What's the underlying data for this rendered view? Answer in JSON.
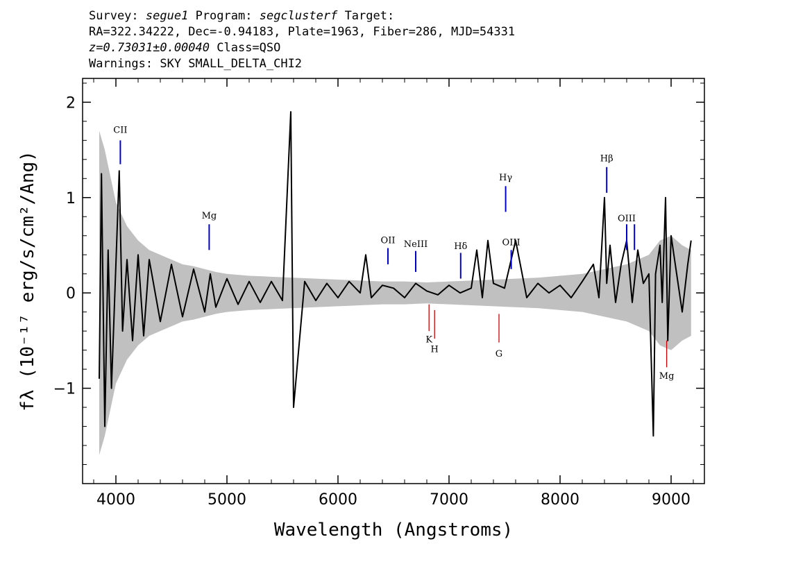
{
  "header": {
    "survey_label": "Survey:",
    "survey": "segue1",
    "program_label": "Program:",
    "program": "segclusterf",
    "target_label": "Target:",
    "line2": "RA=322.34222, Dec=-0.94183, Plate=1963, Fiber=286, MJD=54331",
    "redshift": "z=0.73031±0.00040",
    "class_text": "Class=QSO",
    "warnings": "Warnings: SKY SMALL_DELTA_CHI2"
  },
  "chart_data": {
    "type": "line",
    "xlabel": "Wavelength (Angstroms)",
    "ylabel": "fλ (10⁻¹⁷ erg/s/cm²/Ang)",
    "xlim": [
      3700,
      9300
    ],
    "ylim": [
      -2.0,
      2.25
    ],
    "xticks": [
      4000,
      5000,
      6000,
      7000,
      8000,
      9000
    ],
    "yticks": [
      -1,
      0,
      1,
      2
    ],
    "xtick_labels": [
      "4000",
      "5000",
      "6000",
      "7000",
      "8000",
      "9000"
    ],
    "ytick_labels": [
      "−1",
      "0",
      "1",
      "2"
    ],
    "colors": {
      "flux": "#000000",
      "error": "#c0c0c0",
      "emission": "#0000cc",
      "absorption": "#cc0000"
    },
    "series": [
      {
        "role": "flux",
        "x": [
          3850,
          3870,
          3900,
          3930,
          3960,
          4000,
          4030,
          4060,
          4100,
          4150,
          4200,
          4250,
          4300,
          4400,
          4500,
          4600,
          4700,
          4800,
          4850,
          4900,
          5000,
          5100,
          5200,
          5300,
          5400,
          5500,
          5575,
          5600,
          5700,
          5800,
          5900,
          6000,
          6100,
          6200,
          6250,
          6300,
          6400,
          6500,
          6600,
          6700,
          6800,
          6900,
          7000,
          7100,
          7200,
          7250,
          7300,
          7350,
          7400,
          7500,
          7600,
          7700,
          7800,
          7900,
          8000,
          8100,
          8200,
          8300,
          8350,
          8400,
          8420,
          8450,
          8500,
          8550,
          8600,
          8650,
          8700,
          8750,
          8800,
          8840,
          8860,
          8900,
          8920,
          8950,
          8970,
          9000,
          9050,
          9100,
          9150,
          9180
        ],
        "y": [
          -0.9,
          1.25,
          -1.4,
          0.45,
          -1.0,
          0.3,
          1.28,
          -0.4,
          0.35,
          -0.5,
          0.4,
          -0.45,
          0.35,
          -0.3,
          0.3,
          -0.25,
          0.25,
          -0.2,
          0.2,
          -0.15,
          0.15,
          -0.12,
          0.12,
          -0.1,
          0.12,
          -0.08,
          1.9,
          -1.2,
          0.12,
          -0.08,
          0.1,
          -0.05,
          0.12,
          0.0,
          0.4,
          -0.05,
          0.08,
          0.05,
          -0.05,
          0.1,
          0.02,
          -0.02,
          0.08,
          0.0,
          0.05,
          0.45,
          -0.05,
          0.55,
          0.1,
          0.05,
          0.55,
          -0.05,
          0.1,
          0.0,
          0.08,
          -0.05,
          0.12,
          0.3,
          -0.05,
          1.0,
          0.1,
          0.5,
          -0.1,
          0.3,
          0.55,
          -0.1,
          0.45,
          0.1,
          0.2,
          -1.5,
          0.2,
          0.5,
          -0.1,
          1.0,
          -0.5,
          0.6,
          0.2,
          -0.2,
          0.3,
          0.55
        ]
      },
      {
        "role": "error",
        "x": [
          3850,
          3900,
          4000,
          4100,
          4200,
          4300,
          4400,
          4500,
          4600,
          4700,
          4800,
          4900,
          5000,
          5200,
          5400,
          5600,
          5800,
          6000,
          6200,
          6400,
          6600,
          6800,
          7000,
          7200,
          7400,
          7600,
          7800,
          8000,
          8200,
          8400,
          8600,
          8800,
          8900,
          9000,
          9100,
          9180
        ],
        "y": [
          1.7,
          1.5,
          0.95,
          0.7,
          0.55,
          0.45,
          0.4,
          0.35,
          0.3,
          0.28,
          0.25,
          0.22,
          0.2,
          0.18,
          0.17,
          0.16,
          0.15,
          0.14,
          0.13,
          0.12,
          0.12,
          0.11,
          0.12,
          0.13,
          0.14,
          0.15,
          0.16,
          0.18,
          0.2,
          0.25,
          0.3,
          0.4,
          0.55,
          0.6,
          0.5,
          0.45
        ]
      }
    ],
    "annotations": [
      {
        "label": "CII",
        "x": 4040,
        "y0": 1.35,
        "y1": 1.6,
        "type": "emission",
        "label_y": 1.68
      },
      {
        "label": "Mg",
        "x": 4840,
        "y0": 0.45,
        "y1": 0.72,
        "type": "emission",
        "label_y": 0.78
      },
      {
        "label": "OII",
        "x": 6450,
        "y0": 0.3,
        "y1": 0.47,
        "type": "emission",
        "label_y": 0.52
      },
      {
        "label": "NeIII",
        "x": 6700,
        "y0": 0.22,
        "y1": 0.44,
        "type": "emission",
        "label_y": 0.48
      },
      {
        "label": "Hδ",
        "x": 7105,
        "y0": 0.15,
        "y1": 0.42,
        "type": "emission",
        "label_y": 0.46
      },
      {
        "label": "Hγ",
        "x": 7510,
        "y0": 0.85,
        "y1": 1.12,
        "type": "emission",
        "label_y": 1.18
      },
      {
        "label": "OIII",
        "x": 7560,
        "y0": 0.25,
        "y1": 0.45,
        "type": "emission",
        "label_y": 0.5
      },
      {
        "label": "Hβ",
        "x": 8420,
        "y0": 1.05,
        "y1": 1.32,
        "type": "emission",
        "label_y": 1.38
      },
      {
        "label": "OIII",
        "x": 8600,
        "y0": 0.45,
        "y1": 0.72,
        "type": "emission",
        "label_y": 0.75
      },
      {
        "label": "",
        "x": 8670,
        "y0": 0.45,
        "y1": 0.72,
        "type": "emission",
        "label_y": 0.75
      },
      {
        "label": "K",
        "x": 6820,
        "y0": -0.12,
        "y1": -0.4,
        "type": "absorption",
        "label_y": -0.52
      },
      {
        "label": "H",
        "x": 6870,
        "y0": -0.18,
        "y1": -0.48,
        "type": "absorption",
        "label_y": -0.62
      },
      {
        "label": "G",
        "x": 7450,
        "y0": -0.22,
        "y1": -0.52,
        "type": "absorption",
        "label_y": -0.67
      },
      {
        "label": "Mg",
        "x": 8960,
        "y0": -0.5,
        "y1": -0.78,
        "type": "absorption",
        "label_y": -0.9
      }
    ]
  }
}
